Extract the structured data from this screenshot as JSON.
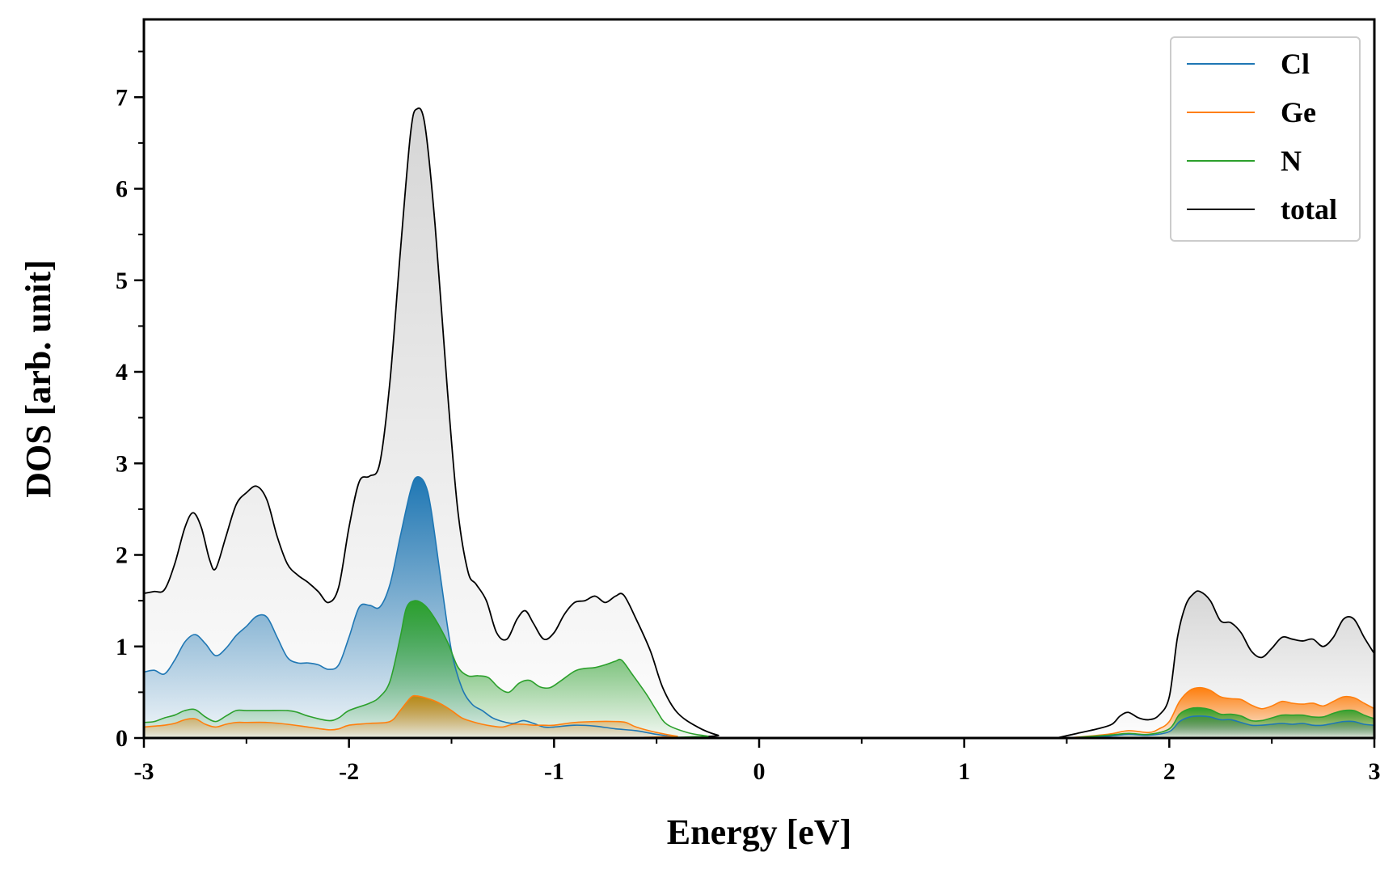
{
  "chart_data": {
    "type": "area",
    "xlabel": "Energy [eV]",
    "ylabel": "DOS [arb. unit]",
    "xlim": [
      -3,
      3
    ],
    "ylim": [
      0,
      7.85
    ],
    "xticks": [
      -3,
      -2,
      -1,
      0,
      1,
      2,
      3
    ],
    "xtick_labels": [
      "-3",
      "-2",
      "-1",
      "0",
      "1",
      "2",
      "3"
    ],
    "yticks": [
      0,
      1,
      2,
      3,
      4,
      5,
      6,
      7
    ],
    "ytick_labels": [
      "0",
      "1",
      "2",
      "3",
      "4",
      "5",
      "6",
      "7"
    ],
    "x_minor_step": 0.5,
    "y_minor_step": 0.5,
    "grid": false,
    "legend_position": "top-right",
    "series": [
      {
        "name": "Cl",
        "color": "#1f77b4",
        "points": [
          [
            -3.0,
            0.72
          ],
          [
            -2.95,
            0.74
          ],
          [
            -2.9,
            0.7
          ],
          [
            -2.85,
            0.85
          ],
          [
            -2.8,
            1.05
          ],
          [
            -2.75,
            1.13
          ],
          [
            -2.7,
            1.03
          ],
          [
            -2.65,
            0.9
          ],
          [
            -2.6,
            0.98
          ],
          [
            -2.55,
            1.12
          ],
          [
            -2.5,
            1.22
          ],
          [
            -2.45,
            1.33
          ],
          [
            -2.4,
            1.32
          ],
          [
            -2.35,
            1.1
          ],
          [
            -2.3,
            0.88
          ],
          [
            -2.25,
            0.82
          ],
          [
            -2.2,
            0.82
          ],
          [
            -2.15,
            0.8
          ],
          [
            -2.1,
            0.75
          ],
          [
            -2.05,
            0.8
          ],
          [
            -2.0,
            1.1
          ],
          [
            -1.95,
            1.43
          ],
          [
            -1.9,
            1.45
          ],
          [
            -1.85,
            1.43
          ],
          [
            -1.8,
            1.68
          ],
          [
            -1.75,
            2.2
          ],
          [
            -1.7,
            2.7
          ],
          [
            -1.67,
            2.85
          ],
          [
            -1.63,
            2.78
          ],
          [
            -1.6,
            2.5
          ],
          [
            -1.55,
            1.7
          ],
          [
            -1.5,
            0.95
          ],
          [
            -1.45,
            0.55
          ],
          [
            -1.4,
            0.37
          ],
          [
            -1.35,
            0.3
          ],
          [
            -1.3,
            0.22
          ],
          [
            -1.25,
            0.18
          ],
          [
            -1.2,
            0.16
          ],
          [
            -1.15,
            0.19
          ],
          [
            -1.1,
            0.16
          ],
          [
            -1.05,
            0.12
          ],
          [
            -1.0,
            0.12
          ],
          [
            -0.9,
            0.14
          ],
          [
            -0.8,
            0.13
          ],
          [
            -0.7,
            0.1
          ],
          [
            -0.6,
            0.08
          ],
          [
            -0.5,
            0.04
          ],
          [
            -0.4,
            0.01
          ],
          [
            -0.3,
            0.0
          ],
          [
            3.0,
            0.0
          ]
        ],
        "points2": [
          [
            1.5,
            0.0
          ],
          [
            1.7,
            0.02
          ],
          [
            1.8,
            0.04
          ],
          [
            1.9,
            0.03
          ],
          [
            2.0,
            0.07
          ],
          [
            2.05,
            0.18
          ],
          [
            2.1,
            0.23
          ],
          [
            2.15,
            0.24
          ],
          [
            2.2,
            0.23
          ],
          [
            2.25,
            0.2
          ],
          [
            2.3,
            0.2
          ],
          [
            2.35,
            0.17
          ],
          [
            2.4,
            0.14
          ],
          [
            2.45,
            0.14
          ],
          [
            2.5,
            0.15
          ],
          [
            2.55,
            0.16
          ],
          [
            2.6,
            0.15
          ],
          [
            2.65,
            0.16
          ],
          [
            2.7,
            0.14
          ],
          [
            2.75,
            0.14
          ],
          [
            2.8,
            0.16
          ],
          [
            2.85,
            0.18
          ],
          [
            2.9,
            0.18
          ],
          [
            2.95,
            0.15
          ],
          [
            3.0,
            0.14
          ]
        ]
      },
      {
        "name": "Ge",
        "color": "#ff7f0e",
        "points": [
          [
            -3.0,
            0.12
          ],
          [
            -2.95,
            0.13
          ],
          [
            -2.9,
            0.14
          ],
          [
            -2.85,
            0.16
          ],
          [
            -2.8,
            0.2
          ],
          [
            -2.75,
            0.21
          ],
          [
            -2.7,
            0.15
          ],
          [
            -2.65,
            0.12
          ],
          [
            -2.6,
            0.15
          ],
          [
            -2.55,
            0.17
          ],
          [
            -2.5,
            0.17
          ],
          [
            -2.4,
            0.17
          ],
          [
            -2.3,
            0.15
          ],
          [
            -2.2,
            0.12
          ],
          [
            -2.1,
            0.09
          ],
          [
            -2.05,
            0.1
          ],
          [
            -2.0,
            0.14
          ],
          [
            -1.9,
            0.16
          ],
          [
            -1.8,
            0.18
          ],
          [
            -1.75,
            0.3
          ],
          [
            -1.7,
            0.44
          ],
          [
            -1.67,
            0.46
          ],
          [
            -1.6,
            0.42
          ],
          [
            -1.55,
            0.37
          ],
          [
            -1.5,
            0.3
          ],
          [
            -1.45,
            0.22
          ],
          [
            -1.4,
            0.18
          ],
          [
            -1.35,
            0.15
          ],
          [
            -1.3,
            0.13
          ],
          [
            -1.25,
            0.12
          ],
          [
            -1.2,
            0.15
          ],
          [
            -1.15,
            0.15
          ],
          [
            -1.1,
            0.14
          ],
          [
            -1.05,
            0.14
          ],
          [
            -1.0,
            0.14
          ],
          [
            -0.9,
            0.17
          ],
          [
            -0.8,
            0.18
          ],
          [
            -0.7,
            0.18
          ],
          [
            -0.65,
            0.17
          ],
          [
            -0.6,
            0.12
          ],
          [
            -0.5,
            0.06
          ],
          [
            -0.4,
            0.02
          ],
          [
            -0.3,
            0.0
          ],
          [
            3.0,
            0.0
          ]
        ],
        "points2": [
          [
            1.5,
            0.0
          ],
          [
            1.7,
            0.04
          ],
          [
            1.8,
            0.08
          ],
          [
            1.9,
            0.06
          ],
          [
            1.95,
            0.1
          ],
          [
            2.0,
            0.18
          ],
          [
            2.05,
            0.4
          ],
          [
            2.1,
            0.52
          ],
          [
            2.15,
            0.55
          ],
          [
            2.2,
            0.52
          ],
          [
            2.25,
            0.45
          ],
          [
            2.3,
            0.43
          ],
          [
            2.35,
            0.42
          ],
          [
            2.4,
            0.36
          ],
          [
            2.45,
            0.32
          ],
          [
            2.5,
            0.35
          ],
          [
            2.55,
            0.4
          ],
          [
            2.6,
            0.38
          ],
          [
            2.65,
            0.37
          ],
          [
            2.7,
            0.38
          ],
          [
            2.75,
            0.35
          ],
          [
            2.8,
            0.4
          ],
          [
            2.85,
            0.45
          ],
          [
            2.9,
            0.44
          ],
          [
            2.95,
            0.38
          ],
          [
            3.0,
            0.32
          ]
        ]
      },
      {
        "name": "N",
        "color": "#2ca02c",
        "points": [
          [
            -3.0,
            0.17
          ],
          [
            -2.95,
            0.18
          ],
          [
            -2.9,
            0.22
          ],
          [
            -2.85,
            0.25
          ],
          [
            -2.8,
            0.3
          ],
          [
            -2.75,
            0.31
          ],
          [
            -2.7,
            0.23
          ],
          [
            -2.65,
            0.18
          ],
          [
            -2.6,
            0.24
          ],
          [
            -2.55,
            0.3
          ],
          [
            -2.5,
            0.3
          ],
          [
            -2.4,
            0.3
          ],
          [
            -2.3,
            0.3
          ],
          [
            -2.25,
            0.28
          ],
          [
            -2.2,
            0.24
          ],
          [
            -2.1,
            0.19
          ],
          [
            -2.05,
            0.22
          ],
          [
            -2.0,
            0.3
          ],
          [
            -1.9,
            0.38
          ],
          [
            -1.85,
            0.45
          ],
          [
            -1.8,
            0.62
          ],
          [
            -1.75,
            1.1
          ],
          [
            -1.72,
            1.42
          ],
          [
            -1.68,
            1.5
          ],
          [
            -1.63,
            1.45
          ],
          [
            -1.58,
            1.3
          ],
          [
            -1.52,
            1.05
          ],
          [
            -1.47,
            0.78
          ],
          [
            -1.42,
            0.68
          ],
          [
            -1.37,
            0.68
          ],
          [
            -1.32,
            0.66
          ],
          [
            -1.27,
            0.55
          ],
          [
            -1.22,
            0.5
          ],
          [
            -1.17,
            0.6
          ],
          [
            -1.12,
            0.63
          ],
          [
            -1.07,
            0.56
          ],
          [
            -1.02,
            0.55
          ],
          [
            -0.97,
            0.62
          ],
          [
            -0.9,
            0.73
          ],
          [
            -0.85,
            0.76
          ],
          [
            -0.8,
            0.77
          ],
          [
            -0.75,
            0.8
          ],
          [
            -0.7,
            0.84
          ],
          [
            -0.67,
            0.85
          ],
          [
            -0.62,
            0.7
          ],
          [
            -0.55,
            0.48
          ],
          [
            -0.5,
            0.3
          ],
          [
            -0.45,
            0.15
          ],
          [
            -0.35,
            0.06
          ],
          [
            -0.25,
            0.02
          ],
          [
            -0.2,
            0.0
          ],
          [
            3.0,
            0.0
          ]
        ],
        "points2": [
          [
            1.5,
            0.0
          ],
          [
            1.7,
            0.03
          ],
          [
            1.8,
            0.05
          ],
          [
            1.9,
            0.04
          ],
          [
            2.0,
            0.1
          ],
          [
            2.05,
            0.26
          ],
          [
            2.1,
            0.32
          ],
          [
            2.15,
            0.33
          ],
          [
            2.2,
            0.31
          ],
          [
            2.25,
            0.26
          ],
          [
            2.3,
            0.26
          ],
          [
            2.35,
            0.24
          ],
          [
            2.4,
            0.19
          ],
          [
            2.45,
            0.19
          ],
          [
            2.5,
            0.22
          ],
          [
            2.55,
            0.25
          ],
          [
            2.6,
            0.25
          ],
          [
            2.65,
            0.25
          ],
          [
            2.7,
            0.23
          ],
          [
            2.75,
            0.23
          ],
          [
            2.8,
            0.27
          ],
          [
            2.85,
            0.3
          ],
          [
            2.9,
            0.3
          ],
          [
            2.95,
            0.25
          ],
          [
            3.0,
            0.21
          ]
        ]
      },
      {
        "name": "total",
        "color": "#000000",
        "points": [
          [
            -3.0,
            1.58
          ],
          [
            -2.95,
            1.6
          ],
          [
            -2.9,
            1.62
          ],
          [
            -2.85,
            1.9
          ],
          [
            -2.8,
            2.3
          ],
          [
            -2.76,
            2.46
          ],
          [
            -2.72,
            2.3
          ],
          [
            -2.68,
            1.95
          ],
          [
            -2.65,
            1.85
          ],
          [
            -2.6,
            2.2
          ],
          [
            -2.55,
            2.55
          ],
          [
            -2.5,
            2.68
          ],
          [
            -2.45,
            2.75
          ],
          [
            -2.4,
            2.6
          ],
          [
            -2.35,
            2.2
          ],
          [
            -2.3,
            1.9
          ],
          [
            -2.25,
            1.78
          ],
          [
            -2.2,
            1.7
          ],
          [
            -2.15,
            1.6
          ],
          [
            -2.1,
            1.48
          ],
          [
            -2.05,
            1.65
          ],
          [
            -2.0,
            2.3
          ],
          [
            -1.95,
            2.8
          ],
          [
            -1.9,
            2.86
          ],
          [
            -1.85,
            3.0
          ],
          [
            -1.8,
            3.9
          ],
          [
            -1.75,
            5.3
          ],
          [
            -1.7,
            6.6
          ],
          [
            -1.67,
            6.87
          ],
          [
            -1.63,
            6.7
          ],
          [
            -1.58,
            5.6
          ],
          [
            -1.52,
            3.8
          ],
          [
            -1.47,
            2.5
          ],
          [
            -1.42,
            1.82
          ],
          [
            -1.38,
            1.68
          ],
          [
            -1.33,
            1.5
          ],
          [
            -1.28,
            1.15
          ],
          [
            -1.23,
            1.08
          ],
          [
            -1.18,
            1.3
          ],
          [
            -1.14,
            1.39
          ],
          [
            -1.1,
            1.25
          ],
          [
            -1.05,
            1.08
          ],
          [
            -1.0,
            1.15
          ],
          [
            -0.95,
            1.35
          ],
          [
            -0.9,
            1.48
          ],
          [
            -0.85,
            1.5
          ],
          [
            -0.8,
            1.55
          ],
          [
            -0.75,
            1.48
          ],
          [
            -0.7,
            1.55
          ],
          [
            -0.66,
            1.56
          ],
          [
            -0.6,
            1.3
          ],
          [
            -0.53,
            0.95
          ],
          [
            -0.47,
            0.55
          ],
          [
            -0.4,
            0.28
          ],
          [
            -0.3,
            0.12
          ],
          [
            -0.2,
            0.03
          ],
          [
            -0.1,
            0.0
          ],
          [
            3.0,
            0.0
          ]
        ],
        "points2": [
          [
            1.45,
            0.0
          ],
          [
            1.55,
            0.05
          ],
          [
            1.65,
            0.1
          ],
          [
            1.72,
            0.15
          ],
          [
            1.76,
            0.24
          ],
          [
            1.8,
            0.28
          ],
          [
            1.85,
            0.22
          ],
          [
            1.9,
            0.2
          ],
          [
            1.95,
            0.25
          ],
          [
            2.0,
            0.45
          ],
          [
            2.04,
            1.1
          ],
          [
            2.08,
            1.45
          ],
          [
            2.12,
            1.58
          ],
          [
            2.15,
            1.6
          ],
          [
            2.2,
            1.5
          ],
          [
            2.25,
            1.28
          ],
          [
            2.3,
            1.26
          ],
          [
            2.35,
            1.15
          ],
          [
            2.4,
            0.95
          ],
          [
            2.45,
            0.88
          ],
          [
            2.5,
            0.98
          ],
          [
            2.55,
            1.1
          ],
          [
            2.6,
            1.08
          ],
          [
            2.65,
            1.06
          ],
          [
            2.7,
            1.08
          ],
          [
            2.75,
            1.0
          ],
          [
            2.8,
            1.1
          ],
          [
            2.85,
            1.3
          ],
          [
            2.9,
            1.3
          ],
          [
            2.95,
            1.1
          ],
          [
            3.0,
            0.92
          ]
        ]
      }
    ]
  }
}
